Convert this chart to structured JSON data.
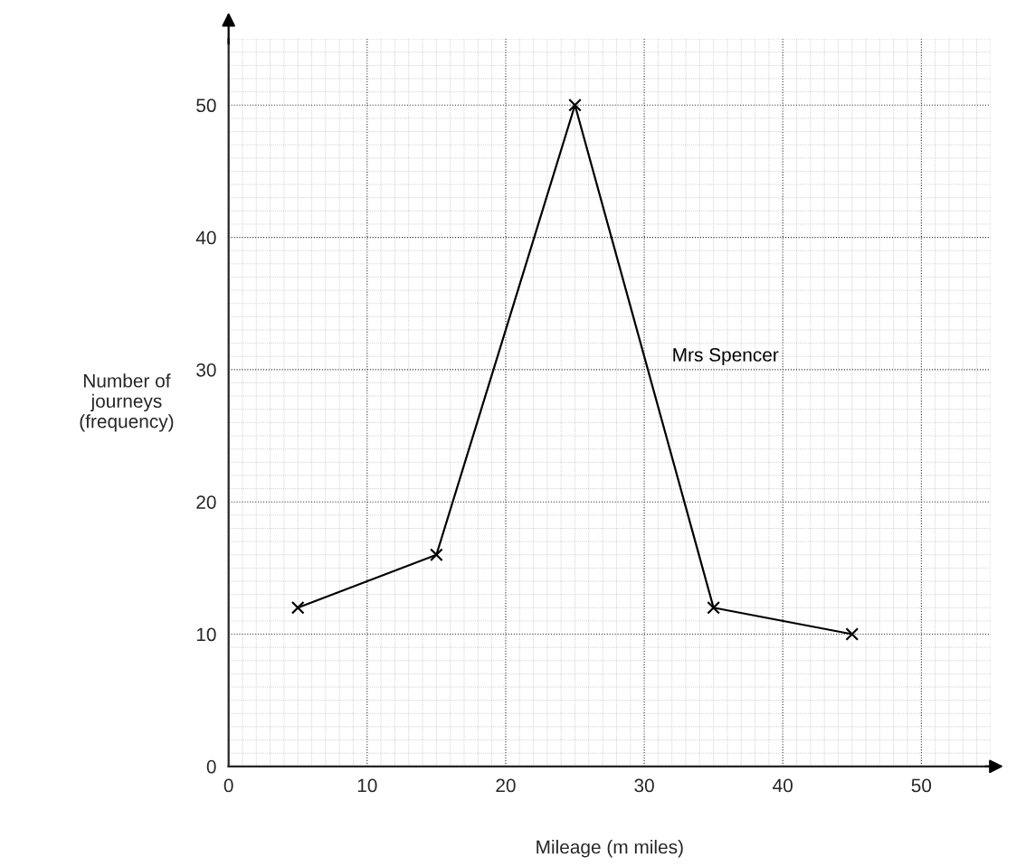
{
  "chart_data": {
    "type": "line",
    "xlabel": "Mileage (m miles)",
    "ylabel": "Number of\njourneys\n(frequency)",
    "x": [
      5,
      15,
      25,
      35,
      45
    ],
    "series": [
      {
        "name": "Mrs Spencer",
        "color": "#000000",
        "values": [
          12,
          16,
          50,
          12,
          10
        ]
      }
    ],
    "xlim": [
      0,
      55
    ],
    "ylim": [
      0,
      55
    ],
    "xticks": [
      0,
      10,
      20,
      30,
      40,
      50
    ],
    "yticks": [
      0,
      10,
      20,
      30,
      40,
      50
    ],
    "grid": true,
    "marker": "cross",
    "line_style": "solid",
    "legend": false
  }
}
